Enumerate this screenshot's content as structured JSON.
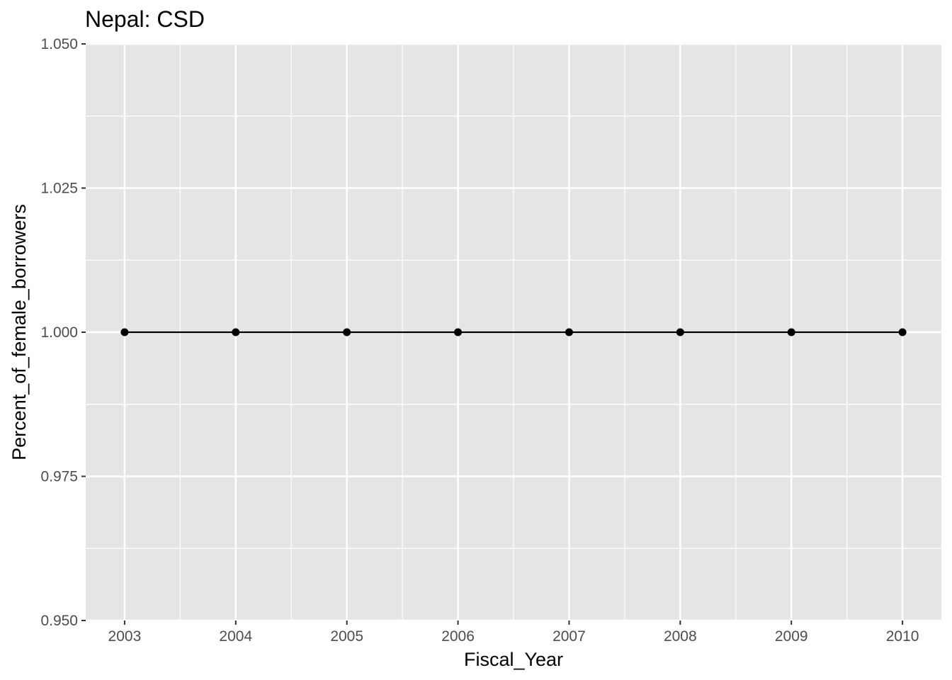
{
  "chart_data": {
    "type": "line",
    "title": "Nepal:  CSD",
    "xlabel": "Fiscal_Year",
    "ylabel": "Percent_of_female_borrowers",
    "x": [
      2003,
      2004,
      2005,
      2006,
      2007,
      2008,
      2009,
      2010
    ],
    "series": [
      {
        "values": [
          1,
          1,
          1,
          1,
          1,
          1,
          1,
          1
        ]
      }
    ],
    "xlim": [
      2002.65,
      2010.35
    ],
    "ylim": [
      0.95,
      1.05
    ],
    "x_ticks": [
      "2003",
      "2004",
      "2005",
      "2006",
      "2007",
      "2008",
      "2009",
      "2010"
    ],
    "y_ticks": [
      "0.950",
      "0.975",
      "1.000",
      "1.025",
      "1.050"
    ],
    "y_tick_values": [
      0.95,
      0.975,
      1.0,
      1.025,
      1.05
    ],
    "grid": true,
    "panel_background": "#e5e5e5",
    "grid_color": "#ffffff",
    "line_color": "#000000",
    "point_color": "#000000",
    "tick_label_color": "#4d4d4d"
  }
}
